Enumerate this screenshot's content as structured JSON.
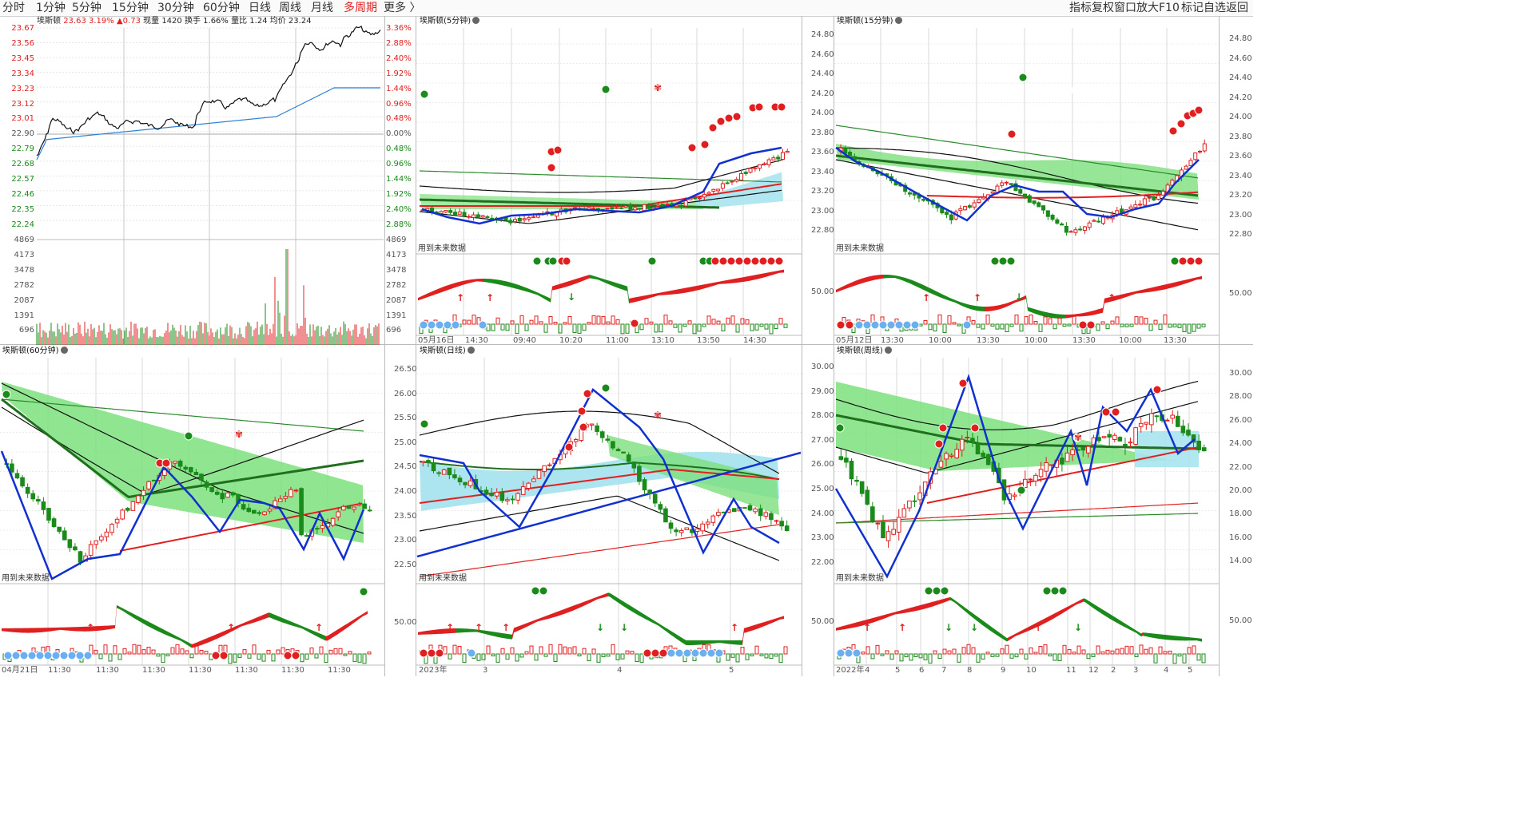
{
  "toolbar": {
    "periods": [
      "分时",
      "1分钟",
      "5分钟",
      "15分钟",
      "30分钟",
      "60分钟",
      "日线",
      "周线",
      "月线",
      "多周期"
    ],
    "active": "多周期",
    "more": "更多",
    "right": [
      "指标",
      "复权",
      "窗口",
      "放大",
      "F10",
      "标记",
      "自选",
      "返回"
    ]
  },
  "intraday": {
    "stock": "埃斯顿",
    "price": "23.63",
    "pct": "3.19%",
    "change": "▲0.73",
    "vol_label": "现量 1420",
    "turnover": "换手 1.66%",
    "ratio": "量比 1.24",
    "avg": "均价 23.24",
    "price_ticks": [
      "23.67",
      "23.56",
      "23.45",
      "23.34",
      "23.23",
      "23.12",
      "23.01",
      "22.90",
      "22.79",
      "22.68",
      "22.57",
      "22.46",
      "22.35",
      "22.24"
    ],
    "pct_ticks": [
      "3.36%",
      "2.88%",
      "2.40%",
      "1.92%",
      "1.44%",
      "0.96%",
      "0.48%",
      "0.00%",
      "0.48%",
      "0.96%",
      "1.44%",
      "1.92%",
      "2.40%",
      "2.88%"
    ],
    "vol_ticks": [
      "4869",
      "4173",
      "3478",
      "2782",
      "2087",
      "1391",
      "696"
    ]
  },
  "panels": {
    "p5": {
      "title": "埃斯顿(5分钟)",
      "note": "用到未来数据",
      "ticks": [],
      "xlabels": [
        "05月16日",
        "14:30",
        "09:40",
        "10:20",
        "11:00",
        "13:10",
        "13:50",
        "14:30"
      ]
    },
    "p15": {
      "title": "埃斯顿(15分钟)",
      "note": "用到未来数据",
      "ticks_left": [
        "24.80",
        "24.60",
        "24.40",
        "24.20",
        "24.00",
        "23.80",
        "23.60",
        "23.40",
        "23.20",
        "23.00",
        "22.80"
      ],
      "ticks_right": [
        "24.80",
        "24.60",
        "24.40",
        "24.20",
        "24.00",
        "23.80",
        "23.60",
        "23.40",
        "23.20",
        "23.00",
        "22.80"
      ],
      "ind_tick": "50.00",
      "xlabels": [
        "05月12日",
        "13:30",
        "10:00",
        "13:30",
        "10:00",
        "13:30",
        "10:00",
        "13:30"
      ]
    },
    "p60": {
      "title": "埃斯顿(60分钟)",
      "note": "用到未来数据",
      "xlabels": [
        "04月21日",
        "11:30",
        "11:30",
        "11:30",
        "11:30",
        "11:30",
        "11:30",
        "11:30"
      ]
    },
    "pday": {
      "title": "埃斯顿(日线)",
      "note": "用到未来数据",
      "ticks": [
        "26.50",
        "26.00",
        "25.50",
        "25.00",
        "24.50",
        "24.00",
        "23.50",
        "23.00",
        "22.50"
      ],
      "ind_tick": "50.00",
      "xlabels": [
        "2023年",
        "3",
        "4",
        "5"
      ]
    },
    "pweek": {
      "title": "埃斯顿(周线)",
      "note": "用到未来数据",
      "ticks_left": [
        "30.00",
        "29.00",
        "28.00",
        "27.00",
        "26.00",
        "25.00",
        "24.00",
        "23.00",
        "22.00"
      ],
      "ticks_right": [
        "30.00",
        "28.00",
        "26.00",
        "24.00",
        "22.00",
        "20.00",
        "18.00",
        "16.00",
        "14.00"
      ],
      "ind_tick_left": "50.00",
      "ind_tick_right": "50.00",
      "xlabels": [
        "2022年",
        "4",
        "5",
        "6",
        "7",
        "8",
        "9",
        "10",
        "11",
        "12",
        "2",
        "3",
        "4",
        "5"
      ]
    }
  },
  "colors": {
    "up": "#e02020",
    "down": "#1a8a1a",
    "blue": "#1030d0",
    "band": "#7de07d",
    "cyan": "#a8e4ee"
  }
}
